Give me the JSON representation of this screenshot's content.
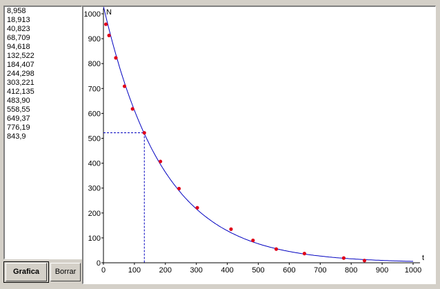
{
  "list": {
    "values": [
      "8,958",
      "18,913",
      "40,823",
      "68,709",
      "94,618",
      "132,522",
      "184,407",
      "244,298",
      "303,221",
      "412,135",
      "483,90",
      "558,55",
      "649,37",
      "776,19",
      "843,9"
    ]
  },
  "buttons": {
    "grafica_label": "Grafica",
    "borrar_label": "Borrar"
  },
  "chart_data": {
    "type": "scatter",
    "xlabel": "t",
    "ylabel": "N",
    "xlim": [
      0,
      1000
    ],
    "ylim": [
      0,
      1000
    ],
    "x_ticks": [
      "0",
      "100",
      "200",
      "300",
      "400",
      "500",
      "600",
      "700",
      "800",
      "900",
      "1000"
    ],
    "y_ticks": [
      "0",
      "100",
      "200",
      "300",
      "400",
      "500",
      "600",
      "700",
      "800",
      "900",
      "1000"
    ],
    "points": [
      {
        "x": 8,
        "y": 958
      },
      {
        "x": 18,
        "y": 913
      },
      {
        "x": 40,
        "y": 823
      },
      {
        "x": 68,
        "y": 709
      },
      {
        "x": 94,
        "y": 618
      },
      {
        "x": 132,
        "y": 522
      },
      {
        "x": 184,
        "y": 407
      },
      {
        "x": 244,
        "y": 298
      },
      {
        "x": 303,
        "y": 221
      },
      {
        "x": 412,
        "y": 135
      },
      {
        "x": 483,
        "y": 90
      },
      {
        "x": 558,
        "y": 55
      },
      {
        "x": 649,
        "y": 37
      },
      {
        "x": 776,
        "y": 19
      },
      {
        "x": 843,
        "y": 9
      }
    ],
    "fit_curve": {
      "type": "exponential",
      "N0": 1030,
      "k": 0.0052
    },
    "marker": {
      "x": 132,
      "y": 522
    },
    "colors": {
      "points": "#e0001a",
      "curve": "#0000c0",
      "axes": "#000000",
      "marker": "#0000c0"
    }
  }
}
